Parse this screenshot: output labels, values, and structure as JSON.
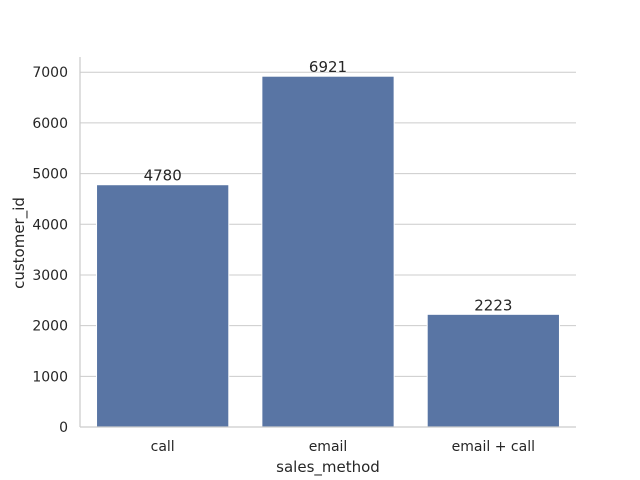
{
  "chart_data": {
    "type": "bar",
    "title": "",
    "xlabel": "sales_method",
    "ylabel": "customer_id",
    "categories": [
      "call",
      "email",
      "email + call"
    ],
    "values": [
      4780,
      6921,
      2223
    ],
    "data_labels": [
      "4780",
      "6921",
      "2223"
    ],
    "ylim": [
      0,
      7300
    ],
    "yticks": [
      0,
      1000,
      2000,
      3000,
      4000,
      5000,
      6000,
      7000
    ],
    "ytick_labels": [
      "0",
      "1000",
      "2000",
      "3000",
      "4000",
      "5000",
      "6000",
      "7000"
    ],
    "grid": "horizontal",
    "legend": "none",
    "bar_color": "#5975a4",
    "grid_color": "#cccccc",
    "axis_color": "#cccccc"
  }
}
